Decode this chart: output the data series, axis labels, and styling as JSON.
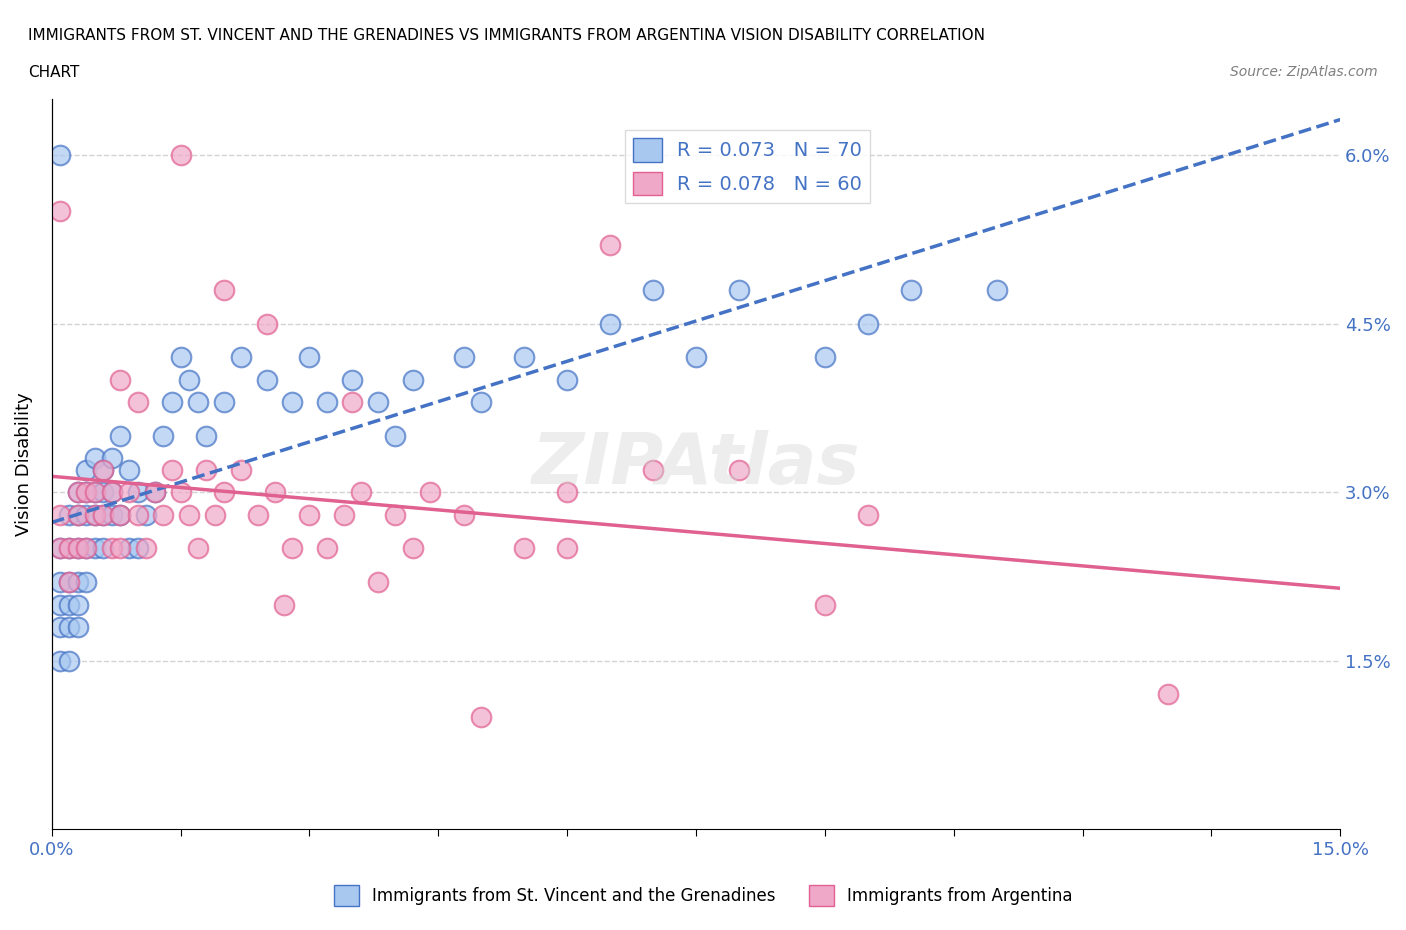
{
  "title_line1": "IMMIGRANTS FROM ST. VINCENT AND THE GRENADINES VS IMMIGRANTS FROM ARGENTINA VISION DISABILITY CORRELATION",
  "title_line2": "CHART",
  "source": "Source: ZipAtlas.com",
  "xlabel": "",
  "ylabel": "Vision Disability",
  "xlim": [
    0.0,
    0.15
  ],
  "ylim": [
    0.0,
    0.065
  ],
  "xticks": [
    0.0,
    0.015,
    0.03,
    0.045,
    0.06,
    0.075,
    0.09,
    0.105,
    0.12,
    0.135,
    0.15
  ],
  "xtick_labels": [
    "0.0%",
    "",
    "",
    "",
    "",
    "",
    "",
    "",
    "",
    "",
    "15.0%"
  ],
  "yticks": [
    0.0,
    0.015,
    0.03,
    0.045,
    0.06
  ],
  "ytick_labels": [
    "",
    "1.5%",
    "3.0%",
    "4.5%",
    "6.0%"
  ],
  "grid_yticks": [
    0.015,
    0.03,
    0.045,
    0.06
  ],
  "color_blue": "#a8c8f0",
  "color_pink": "#f0a8c8",
  "color_blue_line": "#4472c4",
  "color_pink_line": "#e06090",
  "R_blue": 0.073,
  "N_blue": 70,
  "R_pink": 0.078,
  "N_pink": 60,
  "legend_label_blue": "Immigrants from St. Vincent and the Grenadines",
  "legend_label_pink": "Immigrants from Argentina",
  "watermark": "ZIPAtlas",
  "blue_x": [
    0.001,
    0.001,
    0.001,
    0.001,
    0.001,
    0.002,
    0.002,
    0.002,
    0.002,
    0.002,
    0.002,
    0.003,
    0.003,
    0.003,
    0.003,
    0.003,
    0.003,
    0.004,
    0.004,
    0.004,
    0.004,
    0.004,
    0.005,
    0.005,
    0.005,
    0.005,
    0.006,
    0.006,
    0.006,
    0.006,
    0.007,
    0.007,
    0.007,
    0.008,
    0.008,
    0.009,
    0.009,
    0.01,
    0.01,
    0.011,
    0.012,
    0.013,
    0.014,
    0.015,
    0.016,
    0.017,
    0.018,
    0.02,
    0.022,
    0.025,
    0.028,
    0.03,
    0.032,
    0.035,
    0.038,
    0.04,
    0.042,
    0.048,
    0.05,
    0.055,
    0.06,
    0.065,
    0.07,
    0.075,
    0.08,
    0.09,
    0.095,
    0.1,
    0.11,
    0.001
  ],
  "blue_y": [
    0.025,
    0.02,
    0.022,
    0.018,
    0.015,
    0.028,
    0.025,
    0.022,
    0.02,
    0.018,
    0.015,
    0.03,
    0.028,
    0.025,
    0.022,
    0.02,
    0.018,
    0.032,
    0.03,
    0.028,
    0.025,
    0.022,
    0.033,
    0.03,
    0.028,
    0.025,
    0.032,
    0.03,
    0.028,
    0.025,
    0.033,
    0.03,
    0.028,
    0.035,
    0.028,
    0.032,
    0.025,
    0.03,
    0.025,
    0.028,
    0.03,
    0.035,
    0.038,
    0.042,
    0.04,
    0.038,
    0.035,
    0.038,
    0.042,
    0.04,
    0.038,
    0.042,
    0.038,
    0.04,
    0.038,
    0.035,
    0.04,
    0.042,
    0.038,
    0.042,
    0.04,
    0.045,
    0.048,
    0.042,
    0.048,
    0.042,
    0.045,
    0.048,
    0.048,
    0.06
  ],
  "pink_x": [
    0.001,
    0.001,
    0.002,
    0.002,
    0.003,
    0.003,
    0.003,
    0.004,
    0.004,
    0.005,
    0.005,
    0.006,
    0.006,
    0.007,
    0.007,
    0.008,
    0.008,
    0.009,
    0.01,
    0.011,
    0.012,
    0.013,
    0.014,
    0.015,
    0.016,
    0.017,
    0.018,
    0.019,
    0.02,
    0.022,
    0.024,
    0.026,
    0.028,
    0.03,
    0.032,
    0.034,
    0.036,
    0.04,
    0.042,
    0.044,
    0.048,
    0.05,
    0.055,
    0.06,
    0.065,
    0.07,
    0.08,
    0.09,
    0.095,
    0.001,
    0.035,
    0.038,
    0.025,
    0.027,
    0.02,
    0.015,
    0.01,
    0.008,
    0.13,
    0.06
  ],
  "pink_y": [
    0.025,
    0.028,
    0.025,
    0.022,
    0.03,
    0.028,
    0.025,
    0.03,
    0.025,
    0.03,
    0.028,
    0.032,
    0.028,
    0.03,
    0.025,
    0.028,
    0.025,
    0.03,
    0.028,
    0.025,
    0.03,
    0.028,
    0.032,
    0.03,
    0.028,
    0.025,
    0.032,
    0.028,
    0.03,
    0.032,
    0.028,
    0.03,
    0.025,
    0.028,
    0.025,
    0.028,
    0.03,
    0.028,
    0.025,
    0.03,
    0.028,
    0.01,
    0.025,
    0.025,
    0.052,
    0.032,
    0.032,
    0.02,
    0.028,
    0.055,
    0.038,
    0.022,
    0.045,
    0.02,
    0.048,
    0.06,
    0.038,
    0.04,
    0.012,
    0.03
  ]
}
